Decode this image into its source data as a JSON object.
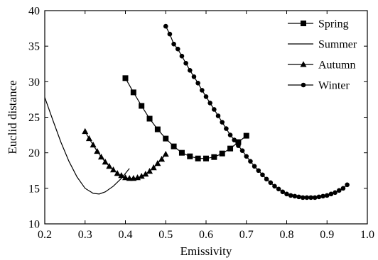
{
  "chart_data": {
    "type": "line",
    "title": "",
    "xlabel": "Emissivity",
    "ylabel": "Euclid distance",
    "xlim": [
      0.2,
      1.0
    ],
    "ylim": [
      10,
      40
    ],
    "xticks": [
      0.2,
      0.3,
      0.4,
      0.5,
      0.6,
      0.7,
      0.8,
      0.9,
      1.0
    ],
    "yticks": [
      10,
      15,
      20,
      25,
      30,
      35,
      40
    ],
    "x_tick_labels": [
      "0.2",
      "0.3",
      "0.4",
      "0.5",
      "0.6",
      "0.7",
      "0.8",
      "0.9",
      "1.0"
    ],
    "y_tick_labels": [
      "10",
      "15",
      "20",
      "25",
      "30",
      "35",
      "40"
    ],
    "grid": false,
    "legend": "top-right",
    "series": [
      {
        "name": "Spring",
        "marker": "square",
        "x": [
          0.4,
          0.42,
          0.44,
          0.46,
          0.48,
          0.5,
          0.52,
          0.54,
          0.56,
          0.58,
          0.6,
          0.62,
          0.64,
          0.66,
          0.68,
          0.7
        ],
        "y": [
          30.5,
          28.5,
          26.6,
          24.8,
          23.3,
          22.0,
          20.9,
          20.0,
          19.5,
          19.2,
          19.2,
          19.4,
          19.9,
          20.6,
          21.5,
          22.4
        ]
      },
      {
        "name": "Summer",
        "marker": "none",
        "x": [
          0.2,
          0.22,
          0.24,
          0.26,
          0.28,
          0.3,
          0.32,
          0.335,
          0.35,
          0.37,
          0.39,
          0.41
        ],
        "y": [
          27.8,
          24.6,
          21.5,
          18.8,
          16.6,
          15.0,
          14.3,
          14.2,
          14.5,
          15.3,
          16.4,
          17.8
        ]
      },
      {
        "name": "Autumn",
        "marker": "triangle",
        "x": [
          0.3,
          0.31,
          0.32,
          0.33,
          0.34,
          0.35,
          0.36,
          0.37,
          0.38,
          0.39,
          0.4,
          0.41,
          0.42,
          0.43,
          0.44,
          0.45,
          0.46,
          0.47,
          0.48,
          0.49,
          0.5
        ],
        "y": [
          23.0,
          22.0,
          21.1,
          20.2,
          19.4,
          18.7,
          18.1,
          17.6,
          17.1,
          16.8,
          16.5,
          16.4,
          16.4,
          16.5,
          16.7,
          17.0,
          17.4,
          17.9,
          18.5,
          19.1,
          19.8
        ]
      },
      {
        "name": "Winter",
        "marker": "circle",
        "x": [
          0.5,
          0.51,
          0.52,
          0.53,
          0.54,
          0.55,
          0.56,
          0.57,
          0.58,
          0.59,
          0.6,
          0.61,
          0.62,
          0.63,
          0.64,
          0.65,
          0.66,
          0.67,
          0.68,
          0.69,
          0.7,
          0.71,
          0.72,
          0.73,
          0.74,
          0.75,
          0.76,
          0.77,
          0.78,
          0.79,
          0.8,
          0.81,
          0.82,
          0.83,
          0.84,
          0.85,
          0.86,
          0.87,
          0.88,
          0.89,
          0.9,
          0.91,
          0.92,
          0.93,
          0.94,
          0.95
        ],
        "y": [
          37.8,
          36.7,
          35.3,
          34.6,
          33.6,
          32.6,
          31.6,
          30.7,
          29.8,
          28.8,
          27.9,
          27.0,
          26.1,
          25.2,
          24.3,
          23.4,
          22.5,
          21.8,
          21.0,
          20.3,
          19.5,
          18.8,
          18.1,
          17.5,
          16.9,
          16.3,
          15.8,
          15.3,
          14.9,
          14.5,
          14.2,
          14.0,
          13.9,
          13.8,
          13.7,
          13.7,
          13.7,
          13.7,
          13.8,
          13.9,
          14.0,
          14.2,
          14.4,
          14.7,
          15.0,
          15.5
        ]
      }
    ]
  }
}
